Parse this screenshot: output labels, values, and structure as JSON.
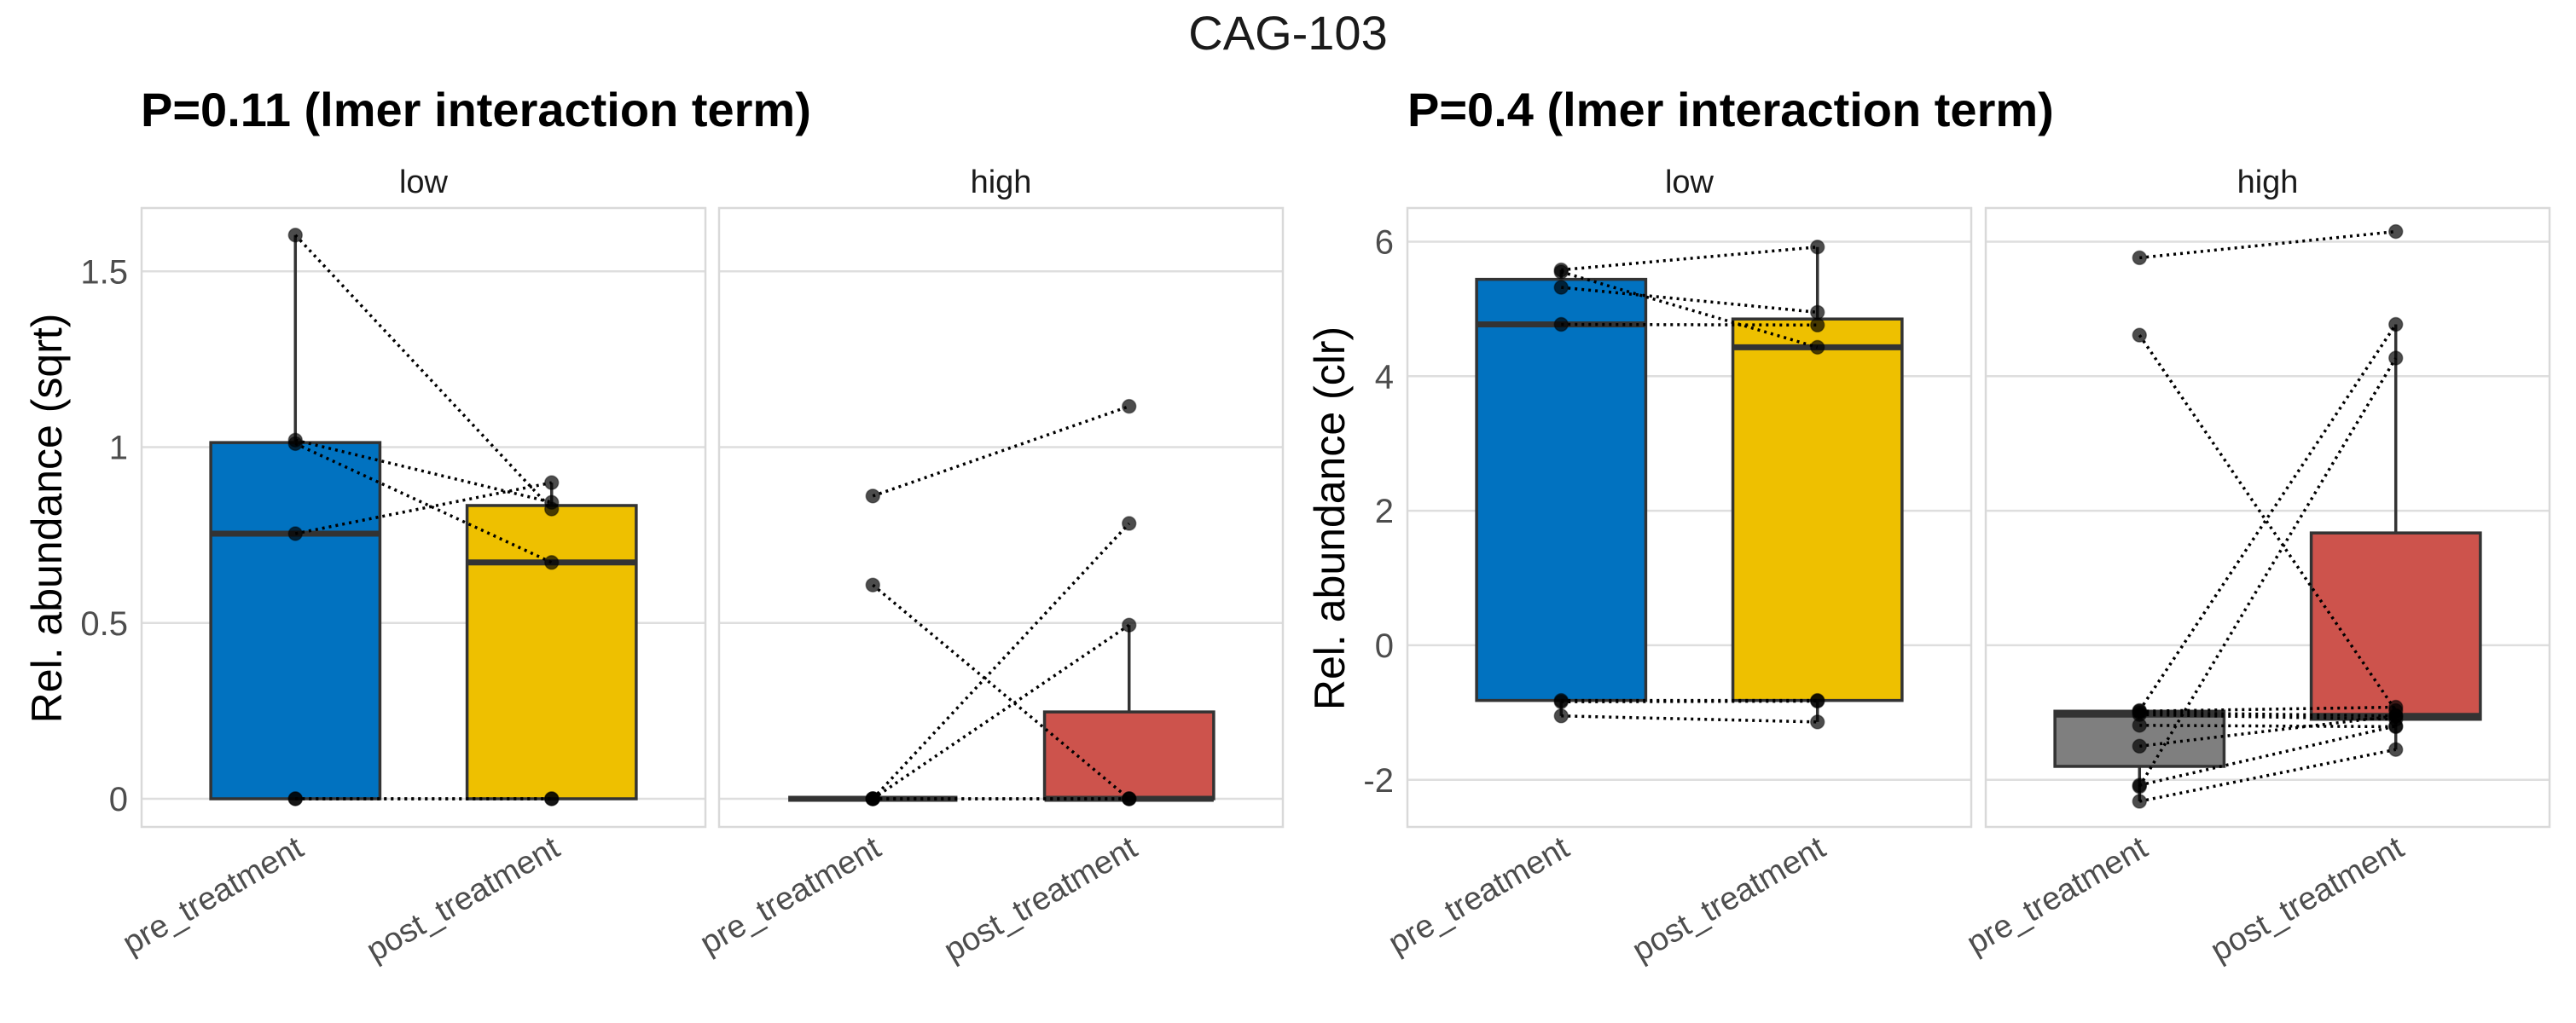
{
  "chart_data": {
    "type": "box",
    "title": "CAG-103",
    "categories": [
      "pre_treatment",
      "post_treatment"
    ],
    "panels": [
      {
        "subtitle": "P=0.11 (lmer interaction term)",
        "ylabel": "Rel. abundance (sqrt)",
        "ylim": [
          -0.08,
          1.68
        ],
        "yticks": [
          0,
          0.5,
          1,
          1.5
        ],
        "ytick_labels": [
          "0",
          "0.5",
          "1",
          "1.5"
        ],
        "facets": [
          {
            "label": "low",
            "boxes": [
              {
                "category": "pre_treatment",
                "color": "#0172C0",
                "q1": 0,
                "median": 0.754,
                "q3": 1.013,
                "whisker_low": 0,
                "whisker_high": 1.603
              },
              {
                "category": "post_treatment",
                "color": "#EEC000",
                "q1": 0,
                "median": 0.672,
                "q3": 0.834,
                "whisker_low": 0,
                "whisker_high": 0.899
              }
            ],
            "pairs": [
              [
                1.603,
                0.824
              ],
              [
                1.02,
                0.843
              ],
              [
                1.01,
                0.672
              ],
              [
                0.754,
                0.899
              ],
              [
                0,
                0
              ],
              [
                0,
                0
              ]
            ]
          },
          {
            "label": "high",
            "boxes": [
              {
                "category": "pre_treatment",
                "color": "#7F7F7F",
                "q1": 0,
                "median": 0,
                "q3": 0,
                "whisker_low": 0,
                "whisker_high": 0
              },
              {
                "category": "post_treatment",
                "color": "#CD534C",
                "q1": 0,
                "median": 0,
                "q3": 0.247,
                "whisker_low": 0,
                "whisker_high": 0.494
              }
            ],
            "pairs": [
              [
                0.861,
                1.116
              ],
              [
                0.608,
                0
              ],
              [
                0,
                0.783
              ],
              [
                0,
                0.494
              ],
              [
                0,
                0
              ],
              [
                0,
                0
              ]
            ]
          }
        ]
      },
      {
        "subtitle": "P=0.4 (lmer interaction term)",
        "ylabel": "Rel. abundance (clr)",
        "ylim": [
          -2.7,
          6.5
        ],
        "yticks": [
          -2,
          0,
          2,
          4,
          6
        ],
        "ytick_labels": [
          "-2",
          "0",
          "2",
          "4",
          "6"
        ],
        "facets": [
          {
            "label": "low",
            "boxes": [
              {
                "category": "pre_treatment",
                "color": "#0172C0",
                "q1": -0.82,
                "median": 4.77,
                "q3": 5.44,
                "whisker_low": -1.05,
                "whisker_high": 5.58
              },
              {
                "category": "post_treatment",
                "color": "#EEC000",
                "q1": -0.82,
                "median": 4.43,
                "q3": 4.85,
                "whisker_low": -1.14,
                "whisker_high": 5.92
              }
            ],
            "pairs": [
              [
                5.58,
                5.92
              ],
              [
                5.55,
                4.43
              ],
              [
                5.32,
                4.95
              ],
              [
                4.77,
                4.76
              ],
              [
                -0.82,
                -0.82
              ],
              [
                -0.84,
                -0.83
              ],
              [
                -1.05,
                -1.14
              ]
            ]
          },
          {
            "label": "high",
            "boxes": [
              {
                "category": "pre_treatment",
                "color": "#7F7F7F",
                "q1": -1.8,
                "median": -1.03,
                "q3": -0.98,
                "whisker_low": -2.32,
                "whisker_high": -0.97
              },
              {
                "category": "post_treatment",
                "color": "#CD534C",
                "q1": -1.1,
                "median": -1.05,
                "q3": 1.67,
                "whisker_low": -1.55,
                "whisker_high": 4.77
              }
            ],
            "pairs": [
              [
                5.76,
                6.15
              ],
              [
                4.61,
                -0.97
              ],
              [
                -0.97,
                4.77
              ],
              [
                -2.1,
                4.27
              ],
              [
                -0.98,
                -0.92
              ],
              [
                -1.0,
                -1.05
              ],
              [
                -1.03,
                -1.1
              ],
              [
                -1.19,
                -1.21
              ],
              [
                -1.5,
                -1.05
              ],
              [
                -2.08,
                -1.2
              ],
              [
                -2.32,
                -1.55
              ]
            ]
          }
        ]
      }
    ]
  }
}
